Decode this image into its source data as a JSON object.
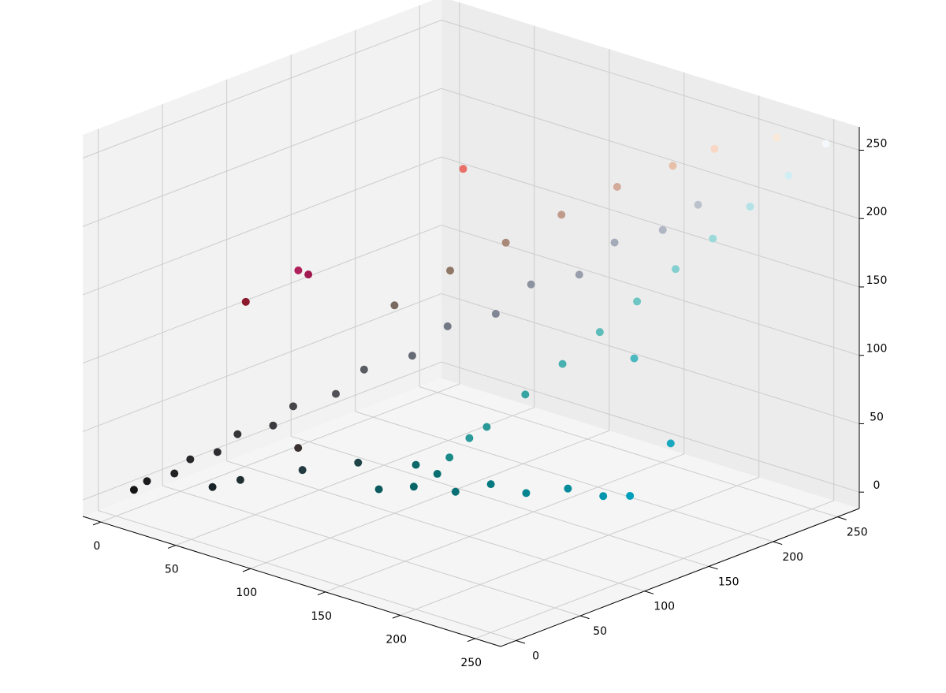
{
  "chart_data": {
    "type": "scatter3d",
    "xlim": [
      -12,
      267
    ],
    "ylim": [
      -12,
      267
    ],
    "zlim": [
      -12,
      267
    ],
    "xticks": [
      0,
      50,
      100,
      150,
      200,
      250
    ],
    "yticks": [
      0,
      50,
      100,
      150,
      200,
      250
    ],
    "zticks": [
      0,
      50,
      100,
      150,
      200,
      250
    ],
    "grid": true,
    "x": [
      5,
      12,
      20,
      28,
      35,
      45,
      55,
      65,
      78,
      90,
      105,
      120,
      135,
      150,
      165,
      180,
      195,
      210,
      40,
      60,
      80,
      30,
      70,
      100,
      120,
      140,
      160,
      180,
      200,
      215,
      235,
      135,
      147,
      159,
      171,
      183,
      195,
      207,
      219,
      231,
      243,
      255,
      150,
      200,
      190,
      87,
      100,
      115,
      130,
      145,
      160,
      175,
      186,
      120,
      110,
      60,
      10,
      15,
      5
    ],
    "y": [
      8,
      10,
      22,
      25,
      38,
      42,
      58,
      62,
      80,
      88,
      108,
      118,
      138,
      148,
      168,
      178,
      198,
      208,
      50,
      75,
      95,
      40,
      60,
      100,
      120,
      140,
      160,
      180,
      200,
      215,
      240,
      102,
      117,
      133,
      148,
      163,
      178,
      194,
      209,
      224,
      240,
      255,
      100,
      170,
      210,
      103,
      115,
      130,
      140,
      150,
      165,
      175,
      183,
      110,
      105,
      200,
      130,
      132,
      95
    ],
    "z": [
      6,
      14,
      18,
      30,
      33,
      48,
      52,
      68,
      75,
      94,
      102,
      125,
      132,
      155,
      160,
      185,
      192,
      212,
      10,
      15,
      20,
      5,
      40,
      140,
      165,
      185,
      205,
      225,
      240,
      252,
      258,
      40,
      61,
      83,
      104,
      126,
      147,
      169,
      190,
      212,
      233,
      255,
      60,
      110,
      30,
      0,
      2,
      -2,
      5,
      0,
      3,
      -1,
      0,
      20,
      25,
      190,
      124,
      122,
      112
    ],
    "colors": [
      "#141414",
      "#1c1c1e",
      "#222224",
      "#28282a",
      "#2e2e32",
      "#353538",
      "#3c3c40",
      "#45454a",
      "#505258",
      "#5a5c64",
      "#666a74",
      "#727884",
      "#808694",
      "#8c92a0",
      "#989eac",
      "#a4aab8",
      "#b0b6c4",
      "#bcc2cc",
      "#1f2f33",
      "#223a40",
      "#1e4448",
      "#182428",
      "#3a3030",
      "#7a6a60",
      "#907868",
      "#a88878",
      "#c09a8a",
      "#d4aa9a",
      "#e8c0aa",
      "#f8d8c4",
      "#fae8d8",
      "#1a8a88",
      "#2a9896",
      "#36a4a2",
      "#48b0ae",
      "#5cbcba",
      "#6ec6c4",
      "#84d0d0",
      "#9cdada",
      "#b4e2e6",
      "#d0eef4",
      "#f4f8fc",
      "#2a9a9a",
      "#4cb8c0",
      "#1aa8c0",
      "#0a5a60",
      "#0a6468",
      "#087074",
      "#067a80",
      "#068490",
      "#048c9c",
      "#0296ac",
      "#00a0bc",
      "#0a6e70",
      "#0c6868",
      "#e87068",
      "#b0205a",
      "#a01a50",
      "#8a1a2c"
    ]
  }
}
